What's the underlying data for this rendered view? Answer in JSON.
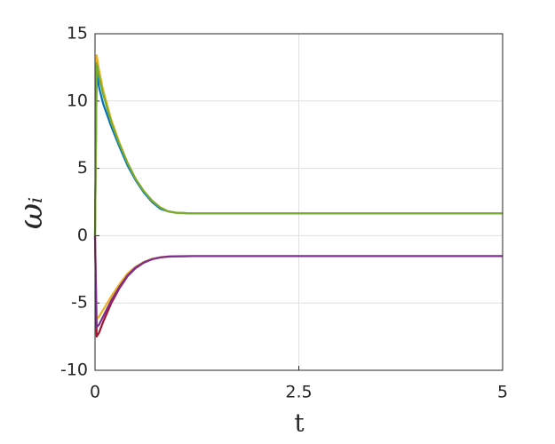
{
  "chart_data": {
    "type": "line",
    "xlabel": "t",
    "ylabel": "ωᵢ",
    "x": [
      0,
      0.02,
      0.05,
      0.1,
      0.2,
      0.3,
      0.4,
      0.5,
      0.6,
      0.7,
      0.8,
      0.9,
      1.0,
      1.2,
      1.5,
      2,
      3,
      4,
      5
    ],
    "series": [
      {
        "color": "#0072BD",
        "values": [
          0,
          12.2,
          11.0,
          9.8,
          8.1,
          6.6,
          5.2,
          4.1,
          3.2,
          2.5,
          2.0,
          1.8,
          1.7,
          1.65,
          1.65,
          1.65,
          1.65,
          1.65,
          1.65
        ]
      },
      {
        "color": "#EDB120",
        "values": [
          0,
          13.4,
          12.3,
          10.8,
          8.6,
          6.9,
          5.4,
          4.2,
          3.3,
          2.6,
          2.1,
          1.8,
          1.7,
          1.65,
          1.65,
          1.65,
          1.65,
          1.65,
          1.65
        ]
      },
      {
        "color": "#77AC30",
        "values": [
          0,
          12.8,
          11.8,
          10.5,
          8.4,
          6.8,
          5.4,
          4.2,
          3.3,
          2.6,
          2.1,
          1.8,
          1.7,
          1.65,
          1.65,
          1.65,
          1.65,
          1.65,
          1.65
        ]
      },
      {
        "color": "#A2142F",
        "values": [
          0,
          -7.5,
          -7.2,
          -6.4,
          -5.0,
          -3.9,
          -3.0,
          -2.4,
          -2.0,
          -1.75,
          -1.62,
          -1.56,
          -1.53,
          -1.52,
          -1.52,
          -1.52,
          -1.52,
          -1.52,
          -1.52
        ]
      },
      {
        "color": "#EDB120",
        "values": [
          0,
          -6.2,
          -6.0,
          -5.5,
          -4.5,
          -3.6,
          -2.8,
          -2.3,
          -1.95,
          -1.72,
          -1.6,
          -1.55,
          -1.53,
          -1.52,
          -1.52,
          -1.52,
          -1.52,
          -1.52,
          -1.52
        ]
      },
      {
        "color": "#7E2F8E",
        "values": [
          0,
          -6.8,
          -6.6,
          -6.0,
          -4.8,
          -3.8,
          -2.95,
          -2.35,
          -1.98,
          -1.74,
          -1.61,
          -1.55,
          -1.53,
          -1.52,
          -1.52,
          -1.52,
          -1.52,
          -1.52,
          -1.52
        ]
      }
    ],
    "xlim": [
      0,
      5
    ],
    "xticks": [
      0,
      2.5,
      5
    ],
    "ylim": [
      -10,
      15
    ],
    "yticks": [
      -10,
      -5,
      0,
      5,
      10,
      15
    ],
    "grid": true
  }
}
